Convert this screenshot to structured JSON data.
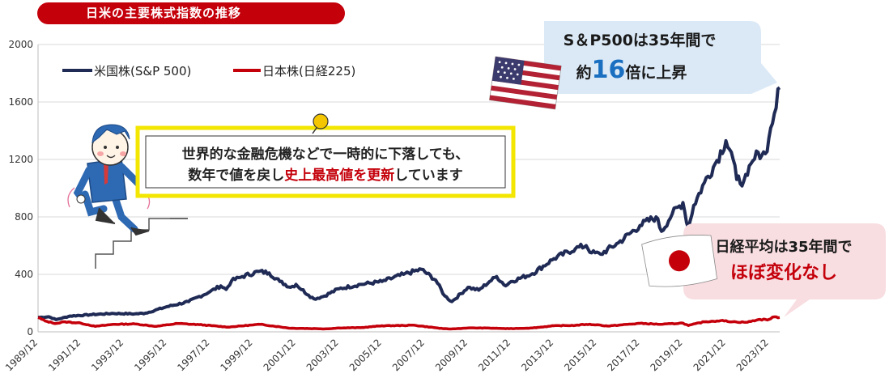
{
  "title": "日米の主要株式指数の推移",
  "colors": {
    "title_bg": "#c4000b",
    "sp500": "#1f2a55",
    "nikkei": "#c4000b",
    "note_border": "#f3e600",
    "us_bubble": "#dbe9f6",
    "jp_bubble": "#f8dde1",
    "highlight_blue": "#1a6fc0"
  },
  "legend": [
    {
      "label": "米国株(S&P 500)"
    },
    {
      "label": "日本株(日経225)"
    }
  ],
  "note": {
    "line1": "世界的な金融危機などで一時的に下落しても、",
    "line2_a": "数年で値を戻し",
    "line2_b": "史上最高値を更新",
    "line2_c": "しています"
  },
  "us_callout": {
    "line1": "S＆P500は35年間で",
    "line2_a": "約",
    "line2_num": "16",
    "line2_b": "倍に上昇",
    "flag_icon": "us-flag-icon"
  },
  "jp_callout": {
    "line1": "日経平均は35年間で",
    "line2": "ほぼ変化なし",
    "flag_icon": "japan-flag-icon"
  },
  "chart_data": {
    "type": "line",
    "ylim": [
      0,
      2000
    ],
    "yticks": [
      "0",
      "400",
      "800",
      "1200",
      "1600",
      "2000"
    ],
    "ytick_values": [
      0,
      400,
      800,
      1200,
      1600,
      2000
    ],
    "xticks": [
      "1989/12",
      "1991/12",
      "1993/12",
      "1995/12",
      "1997/12",
      "1999/12",
      "2001/12",
      "2003/12",
      "2005/12",
      "2007/12",
      "2009/12",
      "2011/12",
      "2013/12",
      "2015/12",
      "2017/12",
      "2019/12",
      "2021/12",
      "2023/12"
    ],
    "x_start": "1989/12",
    "x_end": "2024/06",
    "series": [
      {
        "name": "米国株(S&P 500)",
        "points": [
          [
            "1989/12",
            100
          ],
          [
            "1990/06",
            105
          ],
          [
            "1990/10",
            85
          ],
          [
            "1991/06",
            110
          ],
          [
            "1992/06",
            120
          ],
          [
            "1993/06",
            128
          ],
          [
            "1994/06",
            125
          ],
          [
            "1994/12",
            130
          ],
          [
            "1995/12",
            175
          ],
          [
            "1996/12",
            210
          ],
          [
            "1997/12",
            280
          ],
          [
            "1998/06",
            320
          ],
          [
            "1998/09",
            295
          ],
          [
            "1998/12",
            355
          ],
          [
            "1999/06",
            385
          ],
          [
            "2000/03",
            420
          ],
          [
            "2000/09",
            410
          ],
          [
            "2001/03",
            350
          ],
          [
            "2001/09",
            310
          ],
          [
            "2001/12",
            330
          ],
          [
            "2002/07",
            255
          ],
          [
            "2002/10",
            230
          ],
          [
            "2003/03",
            245
          ],
          [
            "2003/12",
            300
          ],
          [
            "2004/12",
            330
          ],
          [
            "2005/12",
            350
          ],
          [
            "2006/12",
            400
          ],
          [
            "2007/10",
            435
          ],
          [
            "2008/06",
            360
          ],
          [
            "2008/11",
            250
          ],
          [
            "2009/03",
            210
          ],
          [
            "2009/12",
            310
          ],
          [
            "2010/06",
            290
          ],
          [
            "2010/12",
            350
          ],
          [
            "2011/04",
            385
          ],
          [
            "2011/09",
            320
          ],
          [
            "2011/12",
            350
          ],
          [
            "2012/12",
            405
          ],
          [
            "2013/12",
            510
          ],
          [
            "2014/12",
            580
          ],
          [
            "2015/06",
            600
          ],
          [
            "2015/09",
            550
          ],
          [
            "2016/02",
            540
          ],
          [
            "2016/12",
            620
          ],
          [
            "2017/12",
            740
          ],
          [
            "2018/09",
            800
          ],
          [
            "2018/12",
            700
          ],
          [
            "2019/06",
            820
          ],
          [
            "2019/12",
            900
          ],
          [
            "2020/03",
            720
          ],
          [
            "2020/06",
            880
          ],
          [
            "2020/12",
            1040
          ],
          [
            "2021/06",
            1170
          ],
          [
            "2021/12",
            1330
          ],
          [
            "2022/03",
            1250
          ],
          [
            "2022/06",
            1060
          ],
          [
            "2022/10",
            1050
          ],
          [
            "2022/12",
            1090
          ],
          [
            "2023/06",
            1250
          ],
          [
            "2023/10",
            1240
          ],
          [
            "2023/12",
            1350
          ],
          [
            "2024/03",
            1520
          ],
          [
            "2024/06",
            1700
          ]
        ]
      },
      {
        "name": "日本株(日経225)",
        "points": [
          [
            "1989/12",
            100
          ],
          [
            "1990/04",
            75
          ],
          [
            "1990/10",
            58
          ],
          [
            "1991/03",
            70
          ],
          [
            "1991/12",
            60
          ],
          [
            "1992/08",
            38
          ],
          [
            "1993/06",
            52
          ],
          [
            "1994/06",
            55
          ],
          [
            "1995/06",
            38
          ],
          [
            "1996/06",
            58
          ],
          [
            "1997/06",
            50
          ],
          [
            "1998/10",
            33
          ],
          [
            "1999/12",
            48
          ],
          [
            "2000/04",
            52
          ],
          [
            "2001/09",
            25
          ],
          [
            "2002/12",
            22
          ],
          [
            "2003/04",
            20
          ],
          [
            "2003/12",
            27
          ],
          [
            "2004/12",
            29
          ],
          [
            "2005/12",
            42
          ],
          [
            "2006/12",
            44
          ],
          [
            "2007/06",
            46
          ],
          [
            "2008/10",
            22
          ],
          [
            "2009/03",
            20
          ],
          [
            "2009/12",
            27
          ],
          [
            "2010/12",
            26
          ],
          [
            "2011/11",
            22
          ],
          [
            "2012/12",
            27
          ],
          [
            "2013/12",
            42
          ],
          [
            "2014/12",
            45
          ],
          [
            "2015/06",
            52
          ],
          [
            "2015/12",
            49
          ],
          [
            "2016/06",
            40
          ],
          [
            "2017/12",
            59
          ],
          [
            "2018/12",
            52
          ],
          [
            "2019/12",
            61
          ],
          [
            "2020/03",
            44
          ],
          [
            "2020/12",
            70
          ],
          [
            "2021/09",
            78
          ],
          [
            "2022/06",
            68
          ],
          [
            "2022/12",
            67
          ],
          [
            "2023/06",
            85
          ],
          [
            "2023/12",
            86
          ],
          [
            "2024/03",
            104
          ],
          [
            "2024/06",
            100
          ]
        ]
      }
    ]
  }
}
